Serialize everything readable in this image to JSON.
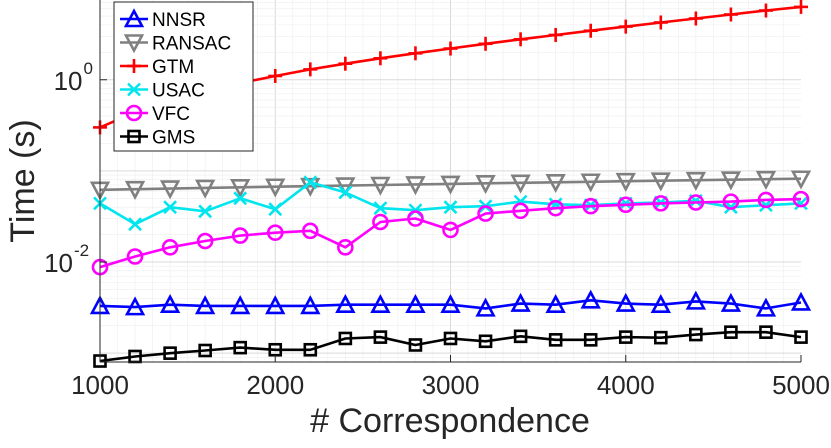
{
  "chart_data": {
    "type": "line",
    "title": "",
    "xlabel": "# Correspondence",
    "ylabel": "Time (s)",
    "yscale": "log",
    "xlim": [
      1000,
      5000
    ],
    "ylim": [
      0.0008,
      7.5
    ],
    "grid": true,
    "legend_position": "top-left",
    "x": [
      1000,
      1200,
      1400,
      1600,
      1800,
      2000,
      2200,
      2400,
      2600,
      2800,
      3000,
      3200,
      3400,
      3600,
      3800,
      4000,
      4200,
      4400,
      4600,
      4800,
      5000
    ],
    "xticks": [
      {
        "value": 1000,
        "label": "1000"
      },
      {
        "value": 2000,
        "label": "2000"
      },
      {
        "value": 3000,
        "label": "3000"
      },
      {
        "value": 4000,
        "label": "4000"
      },
      {
        "value": 5000,
        "label": "5000"
      }
    ],
    "yticks": [
      {
        "value": 1,
        "base": "10",
        "exp": "0"
      },
      {
        "value": 0.01,
        "base": "10",
        "exp": "-2"
      }
    ],
    "series": [
      {
        "name": "NNSR",
        "color": "#0000ff",
        "marker": "triangle-up",
        "values": [
          0.0033,
          0.0032,
          0.0034,
          0.0033,
          0.0033,
          0.0033,
          0.0033,
          0.0034,
          0.0034,
          0.0034,
          0.0034,
          0.0031,
          0.0035,
          0.0034,
          0.0038,
          0.0035,
          0.0034,
          0.0037,
          0.0035,
          0.0031,
          0.0036
        ]
      },
      {
        "name": "RANSAC",
        "color": "#808080",
        "marker": "triangle-down",
        "values": [
          0.062,
          0.063,
          0.064,
          0.065,
          0.066,
          0.067,
          0.068,
          0.069,
          0.07,
          0.071,
          0.072,
          0.073,
          0.074,
          0.075,
          0.076,
          0.077,
          0.078,
          0.079,
          0.08,
          0.081,
          0.082
        ]
      },
      {
        "name": "GTM",
        "color": "#ff0000",
        "marker": "plus",
        "values": [
          0.3,
          0.44,
          0.6,
          0.76,
          0.92,
          1.1,
          1.3,
          1.5,
          1.72,
          1.95,
          2.2,
          2.48,
          2.78,
          3.1,
          3.45,
          3.83,
          4.25,
          4.7,
          5.2,
          5.75,
          6.3
        ]
      },
      {
        "name": "USAC",
        "color": "#00e5ee",
        "marker": "x",
        "values": [
          0.044,
          0.026,
          0.04,
          0.036,
          0.05,
          0.038,
          0.075,
          0.058,
          0.039,
          0.037,
          0.04,
          0.041,
          0.046,
          0.043,
          0.042,
          0.044,
          0.045,
          0.047,
          0.04,
          0.042,
          0.044
        ]
      },
      {
        "name": "VFC",
        "color": "#ff00ff",
        "marker": "circle",
        "values": [
          0.0088,
          0.0115,
          0.0145,
          0.017,
          0.0195,
          0.021,
          0.022,
          0.0145,
          0.0275,
          0.03,
          0.0225,
          0.034,
          0.0365,
          0.039,
          0.041,
          0.0425,
          0.044,
          0.045,
          0.046,
          0.048,
          0.049
        ]
      },
      {
        "name": "GMS",
        "color": "#000000",
        "marker": "square",
        "values": [
          0.00082,
          0.00092,
          0.001,
          0.00107,
          0.00115,
          0.00109,
          0.00109,
          0.00145,
          0.0015,
          0.00123,
          0.00145,
          0.00135,
          0.00153,
          0.0014,
          0.0014,
          0.0015,
          0.00148,
          0.0016,
          0.0017,
          0.0017,
          0.0015
        ]
      }
    ]
  }
}
